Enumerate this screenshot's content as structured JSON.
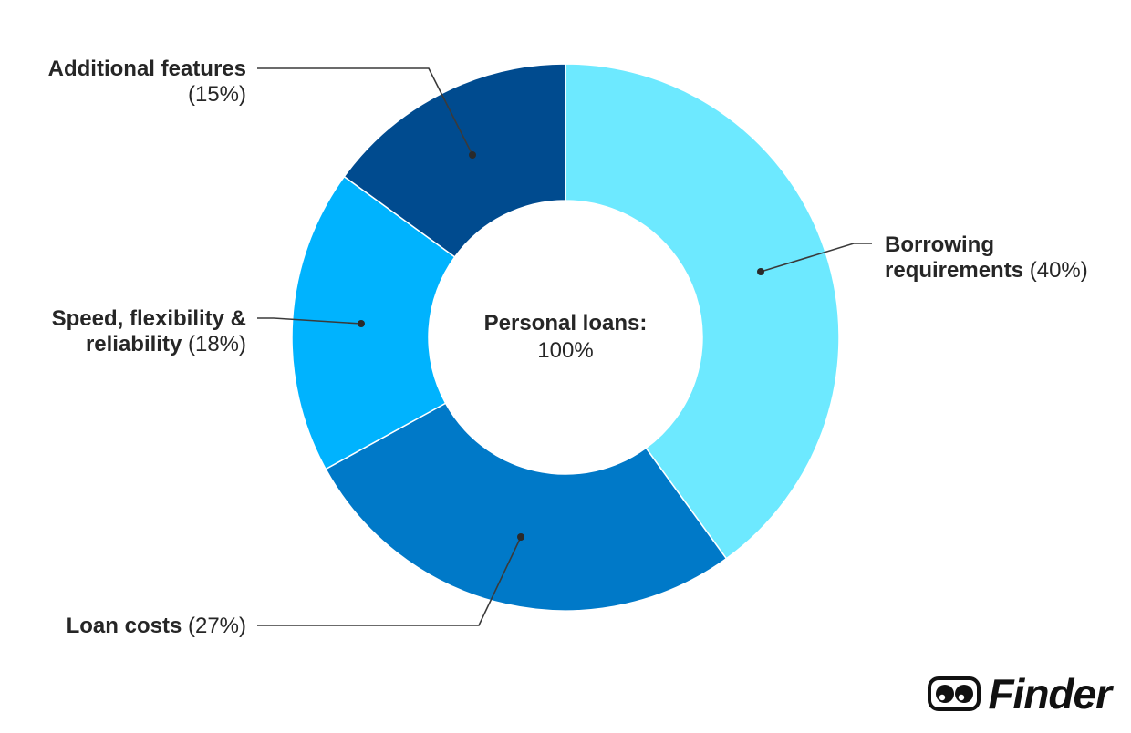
{
  "chart_data": {
    "type": "pie",
    "donut": true,
    "center_label": {
      "title": "Personal loans:",
      "value": "100%"
    },
    "slices": [
      {
        "name": "Borrowing requirements",
        "value": 40,
        "display": "(40%)",
        "color": "#6de9ff",
        "label_lines": [
          "Borrowing",
          "requirements"
        ],
        "label_side": "right"
      },
      {
        "name": "Loan costs",
        "value": 27,
        "display": "(27%)",
        "color": "#0079c8",
        "label_lines": [
          "Loan costs"
        ],
        "label_side": "left"
      },
      {
        "name": "Speed, flexibility & reliability",
        "value": 18,
        "display": "(18%)",
        "color": "#00b3fe",
        "label_lines": [
          "Speed, flexibility &",
          "reliability"
        ],
        "label_side": "left"
      },
      {
        "name": "Additional features",
        "value": 15,
        "display": "(15%)",
        "color": "#004b8f",
        "label_lines": [
          "Additional features"
        ],
        "label_side": "left"
      }
    ]
  },
  "brand": {
    "name": "Finder",
    "logo_icon": "eyes-icon"
  }
}
